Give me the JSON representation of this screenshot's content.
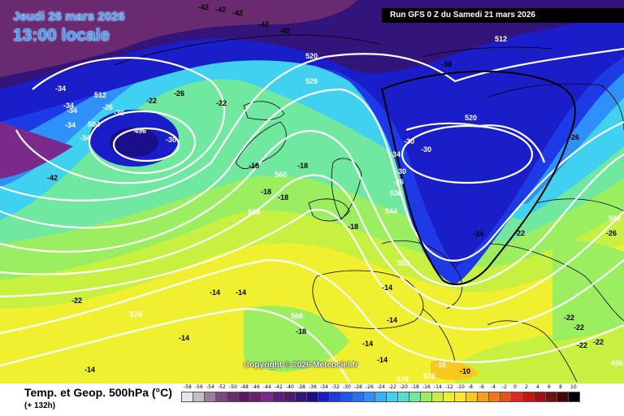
{
  "header": {
    "date_line": "Jeudi 26 mars 2026",
    "time_line": "13:00 locale",
    "run_info": "Run GFS 0 Z du Samedi 21 mars 2026"
  },
  "copyright": "Copyright © 2026 Meteociel.fr",
  "legend": {
    "title": "Temp. et Geop. 500hPa (°C)",
    "subtitle": "(+ 132h)",
    "scale_values": [
      "-58",
      "-56",
      "-54",
      "-52",
      "-50",
      "-48",
      "-46",
      "-44",
      "-42",
      "-40",
      "-38",
      "-36",
      "-34",
      "-32",
      "-30",
      "-28",
      "-26",
      "-24",
      "-22",
      "-20",
      "-18",
      "-16",
      "-14",
      "-12",
      "-10",
      "-8",
      "-6",
      "-4",
      "-2",
      "0",
      "2",
      "4",
      "6",
      "8",
      "10"
    ],
    "scale_colors": [
      "#e6e6e6",
      "#bfbfbf",
      "#9a7c9c",
      "#7a4a7e",
      "#6a2a70",
      "#5a1a62",
      "#6b1e6e",
      "#7a2a8a",
      "#5a1e7a",
      "#4a1c6a",
      "#32147a",
      "#1a0e8a",
      "#1a1ec8",
      "#1e3ae6",
      "#2054f0",
      "#2870f5",
      "#2e90f8",
      "#38b0f8",
      "#40d0f0",
      "#50e0d0",
      "#70e8a0",
      "#9aee60",
      "#c8f040",
      "#f0f030",
      "#f8e828",
      "#f8c820",
      "#f8a018",
      "#f07818",
      "#e85018",
      "#e02818",
      "#c81410",
      "#a01010",
      "#701010",
      "#400808",
      "#000000"
    ]
  },
  "map_labels": {
    "temperature": [
      {
        "text": "-42",
        "c": "black"
      },
      {
        "text": "-42",
        "c": "black"
      },
      {
        "text": "-42",
        "c": "black"
      },
      {
        "text": "-42",
        "c": "black"
      },
      {
        "text": "-42",
        "c": "black"
      },
      {
        "text": "-42",
        "c": "black"
      },
      {
        "text": "-34",
        "c": "white"
      },
      {
        "text": "-34",
        "c": "white"
      },
      {
        "text": "-34",
        "c": "white"
      },
      {
        "text": "-34",
        "c": "white"
      },
      {
        "text": "-34",
        "c": "white"
      },
      {
        "text": "-26",
        "c": "white"
      },
      {
        "text": "-30",
        "c": "white"
      },
      {
        "text": "-30",
        "c": "white"
      },
      {
        "text": "-22",
        "c": "black"
      },
      {
        "text": "-26",
        "c": "black"
      },
      {
        "text": "-22",
        "c": "black"
      },
      {
        "text": "-38",
        "c": "black"
      },
      {
        "text": "-34",
        "c": "white"
      },
      {
        "text": "-30",
        "c": "white"
      },
      {
        "text": "-30",
        "c": "white"
      },
      {
        "text": "-30",
        "c": "white"
      },
      {
        "text": "-26",
        "c": "white"
      },
      {
        "text": "-18",
        "c": "black"
      },
      {
        "text": "-18",
        "c": "black"
      },
      {
        "text": "-18",
        "c": "black"
      },
      {
        "text": "-18",
        "c": "black"
      },
      {
        "text": "-18",
        "c": "black"
      },
      {
        "text": "-26",
        "c": "black"
      },
      {
        "text": "-22",
        "c": "black"
      },
      {
        "text": "-34",
        "c": "black"
      },
      {
        "text": "-26",
        "c": "black"
      },
      {
        "text": "-22",
        "c": "black"
      },
      {
        "text": "-14",
        "c": "black"
      },
      {
        "text": "-14",
        "c": "black"
      },
      {
        "text": "-14",
        "c": "black"
      },
      {
        "text": "-14",
        "c": "black"
      },
      {
        "text": "-18",
        "c": "black"
      },
      {
        "text": "-14",
        "c": "black"
      },
      {
        "text": "-14",
        "c": "black"
      },
      {
        "text": "-14",
        "c": "black"
      },
      {
        "text": "-14",
        "c": "black"
      },
      {
        "text": "-10",
        "c": "white"
      },
      {
        "text": "-10",
        "c": "black"
      },
      {
        "text": "-22",
        "c": "black"
      },
      {
        "text": "-22",
        "c": "black"
      },
      {
        "text": "-22",
        "c": "black"
      },
      {
        "text": "-22",
        "c": "black"
      }
    ],
    "geopotential": [
      {
        "text": "512"
      },
      {
        "text": "504"
      },
      {
        "text": "496"
      },
      {
        "text": "520"
      },
      {
        "text": "528"
      },
      {
        "text": "520"
      },
      {
        "text": "512"
      },
      {
        "text": "560"
      },
      {
        "text": "568"
      },
      {
        "text": "536"
      },
      {
        "text": "544"
      },
      {
        "text": "552"
      },
      {
        "text": "552"
      },
      {
        "text": "576"
      },
      {
        "text": "568"
      },
      {
        "text": "576"
      },
      {
        "text": "576"
      },
      {
        "text": "496"
      }
    ]
  }
}
